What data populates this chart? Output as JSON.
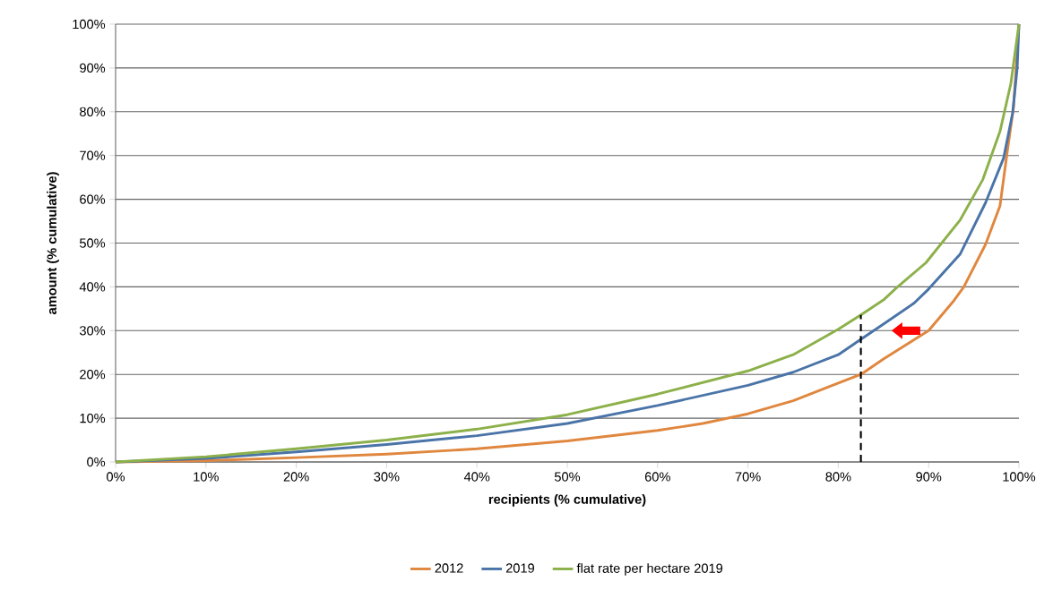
{
  "chart_data": {
    "type": "line",
    "xlabel": "recipients (% cumulative)",
    "ylabel": "amount (% cumulative)",
    "xlim": [
      0,
      100
    ],
    "ylim": [
      0,
      100
    ],
    "xticks": [
      {
        "value": 0,
        "label": "0%"
      },
      {
        "value": 10,
        "label": "10%"
      },
      {
        "value": 20,
        "label": "20%"
      },
      {
        "value": 30,
        "label": "30%"
      },
      {
        "value": 40,
        "label": "40%"
      },
      {
        "value": 50,
        "label": "50%"
      },
      {
        "value": 60,
        "label": "60%"
      },
      {
        "value": 70,
        "label": "70%"
      },
      {
        "value": 80,
        "label": "80%"
      },
      {
        "value": 90,
        "label": "90%"
      },
      {
        "value": 100,
        "label": "100%"
      }
    ],
    "yticks": [
      {
        "value": 0,
        "label": "0%"
      },
      {
        "value": 10,
        "label": "10%"
      },
      {
        "value": 20,
        "label": "20%"
      },
      {
        "value": 30,
        "label": "30%"
      },
      {
        "value": 40,
        "label": "40%"
      },
      {
        "value": 50,
        "label": "50%"
      },
      {
        "value": 60,
        "label": "60%"
      },
      {
        "value": 70,
        "label": "70%"
      },
      {
        "value": 80,
        "label": "80%"
      },
      {
        "value": 90,
        "label": "90%"
      },
      {
        "value": 100,
        "label": "100%"
      }
    ],
    "grid": "y",
    "legend": "bottom",
    "marker": "none",
    "series": [
      {
        "name": "2012",
        "color": "#e0873f",
        "x": [
          0,
          10,
          20,
          30,
          40,
          50,
          60,
          65,
          70,
          75,
          80,
          82.5,
          85,
          90,
          92.7,
          93.9,
          96.3,
          97.9,
          98.7,
          99.4,
          100
        ],
        "values": [
          0,
          0.3,
          1,
          1.8,
          3,
          4.8,
          7.2,
          8.8,
          11,
          14,
          18,
          20,
          23.5,
          30,
          36.6,
          40,
          49.7,
          58.5,
          70.8,
          81,
          100
        ]
      },
      {
        "name": "2019",
        "color": "#4a74a8",
        "x": [
          0,
          10,
          20,
          30,
          40,
          50,
          60,
          70,
          75,
          80,
          82.5,
          85,
          88.4,
          90,
          93.5,
          96.3,
          98.3,
          99.3,
          99.8,
          100
        ],
        "values": [
          0,
          0.8,
          2.3,
          4,
          6,
          8.8,
          12.9,
          17.5,
          20.5,
          24.5,
          28,
          31.5,
          36.3,
          39.5,
          47.5,
          59.2,
          69.4,
          79.7,
          89.9,
          100
        ]
      },
      {
        "name": "flat rate per hectare 2019",
        "color": "#8cb04a",
        "x": [
          0,
          10,
          20,
          30,
          40,
          50,
          60,
          70,
          75,
          80,
          82.5,
          85,
          86.4,
          89.7,
          93.5,
          96,
          97.9,
          99.1,
          100
        ],
        "values": [
          0,
          1.2,
          3,
          5,
          7.5,
          10.8,
          15.5,
          20.8,
          24.5,
          30.3,
          33.6,
          37,
          39.7,
          45.5,
          55.3,
          64.5,
          75.5,
          86.4,
          100
        ]
      },
      {
        "type": "line",
        "color": "#000000",
        "line_style": "dashed",
        "x": [
          82.5,
          82.5
        ],
        "values": [
          0,
          33.6
        ]
      }
    ]
  }
}
